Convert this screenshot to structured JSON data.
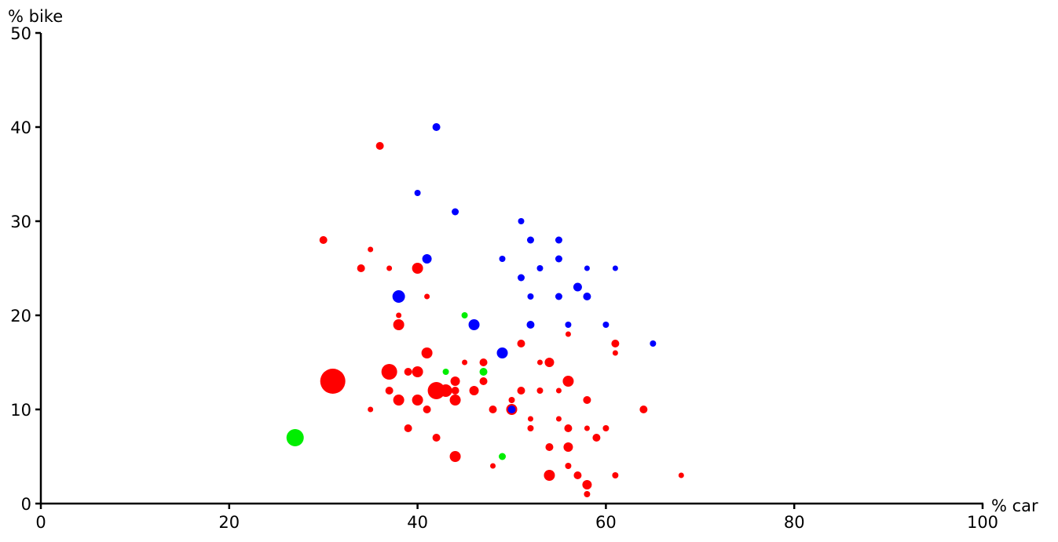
{
  "chart_data": {
    "type": "scatter",
    "xlabel": "% car",
    "ylabel": "% bike",
    "xlim": [
      0,
      100
    ],
    "xticks": [
      0,
      20,
      40,
      60,
      80,
      100
    ],
    "ylim": [
      0,
      50
    ],
    "yticks": [
      0,
      10,
      20,
      30,
      40,
      50
    ],
    "grid": false,
    "series": [
      {
        "color": "#ff0000",
        "x": [
          36,
          30,
          35,
          34,
          37,
          40,
          41,
          38,
          38,
          41,
          31,
          37,
          39,
          40,
          37,
          38,
          40,
          42,
          43,
          44,
          44,
          44,
          35,
          41,
          39,
          42,
          44,
          45,
          46,
          47,
          47,
          48,
          48,
          50,
          50,
          51,
          51,
          52,
          52,
          53,
          53,
          54,
          54,
          54,
          55,
          55,
          56,
          56,
          56,
          56,
          56,
          57,
          58,
          58,
          58,
          58,
          59,
          60,
          61,
          61,
          61,
          64,
          68
        ],
        "y": [
          38,
          28,
          27,
          25,
          25,
          25,
          22,
          20,
          19,
          16,
          13,
          14,
          14,
          14,
          12,
          11,
          11,
          12,
          12,
          12,
          13,
          11,
          10,
          10,
          8,
          7,
          5,
          15,
          12,
          15,
          13,
          10,
          4,
          11,
          10,
          17,
          12,
          9,
          8,
          15,
          12,
          15,
          6,
          3,
          12,
          9,
          18,
          13,
          8,
          6,
          4,
          3,
          11,
          8,
          2,
          1,
          7,
          8,
          17,
          16,
          3,
          10,
          3
        ],
        "sizes": [
          5,
          5,
          3.5,
          5,
          3.5,
          7,
          3.5,
          3.5,
          7,
          7,
          16,
          10,
          5,
          7,
          5,
          7,
          7,
          11,
          8,
          5,
          6,
          7,
          3.5,
          5,
          5,
          5,
          7,
          3.5,
          6,
          5,
          5,
          5,
          3.5,
          4,
          7,
          5,
          5,
          3.5,
          4,
          3.5,
          4,
          6,
          5,
          7,
          3.5,
          3.5,
          3.5,
          7,
          5,
          6,
          4,
          5,
          5,
          3.5,
          6,
          4,
          5,
          4,
          5,
          3.5,
          4,
          5,
          3.5
        ]
      },
      {
        "color": "#0000ff",
        "x": [
          42,
          40,
          44,
          51,
          52,
          55,
          41,
          49,
          55,
          53,
          58,
          61,
          51,
          38,
          52,
          55,
          57,
          58,
          46,
          52,
          56,
          60,
          49,
          65,
          50
        ],
        "y": [
          40,
          33,
          31,
          30,
          28,
          28,
          26,
          26,
          26,
          25,
          25,
          25,
          24,
          22,
          22,
          22,
          23,
          22,
          19,
          19,
          19,
          19,
          16,
          17,
          10
        ],
        "sizes": [
          5,
          4,
          4.5,
          4,
          4.5,
          4.5,
          6,
          4,
          4.5,
          4,
          3.5,
          3.5,
          4.5,
          8,
          4,
          4.5,
          5.5,
          5,
          7,
          5,
          4,
          4,
          7,
          4,
          5
        ]
      },
      {
        "color": "#00ee00",
        "x": [
          27,
          45,
          43,
          47,
          49
        ],
        "y": [
          7,
          20,
          14,
          14,
          5
        ],
        "sizes": [
          11,
          4,
          4,
          5,
          4.5
        ]
      }
    ]
  }
}
